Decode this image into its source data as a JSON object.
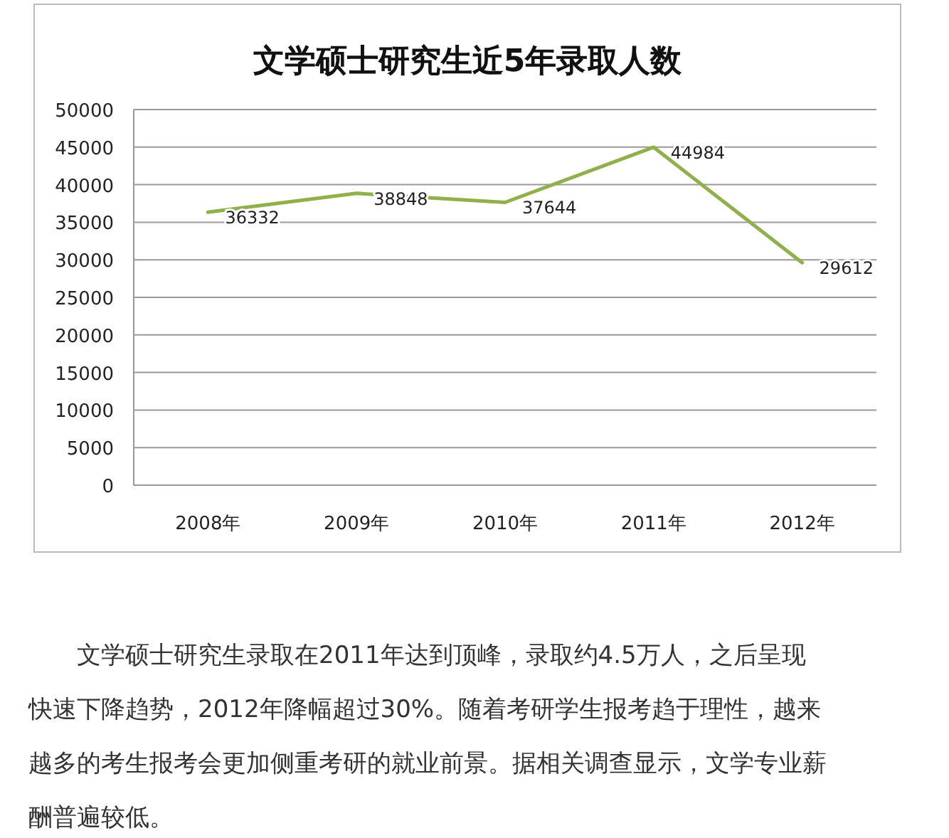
{
  "chart_data": {
    "type": "line",
    "title": "文学硕士研究生近5年录取人数",
    "categories": [
      "2008年",
      "2009年",
      "2010年",
      "2011年",
      "2012年"
    ],
    "series": [
      {
        "color": "#8fb04a",
        "values": [
          36332,
          38848,
          37644,
          44984,
          29612
        ]
      }
    ],
    "ylim": [
      0,
      50000
    ],
    "yticks": [
      0,
      5000,
      10000,
      15000,
      20000,
      25000,
      30000,
      35000,
      40000,
      45000,
      50000
    ],
    "grid": "y",
    "data_labels": true,
    "marker": "none",
    "line_style": "solid",
    "annotations": [
      "文学硕士研究生录取在2011年达到顶峰，录取约4.5万人，之后呈现快速下降趋势，2012年降幅超过30%。随着考研学生报考趋于理性，越来越多的考生报考会更加侧重考研的就业前景。据相关调查显示，文学专业薪酬普遍较低。"
    ]
  }
}
